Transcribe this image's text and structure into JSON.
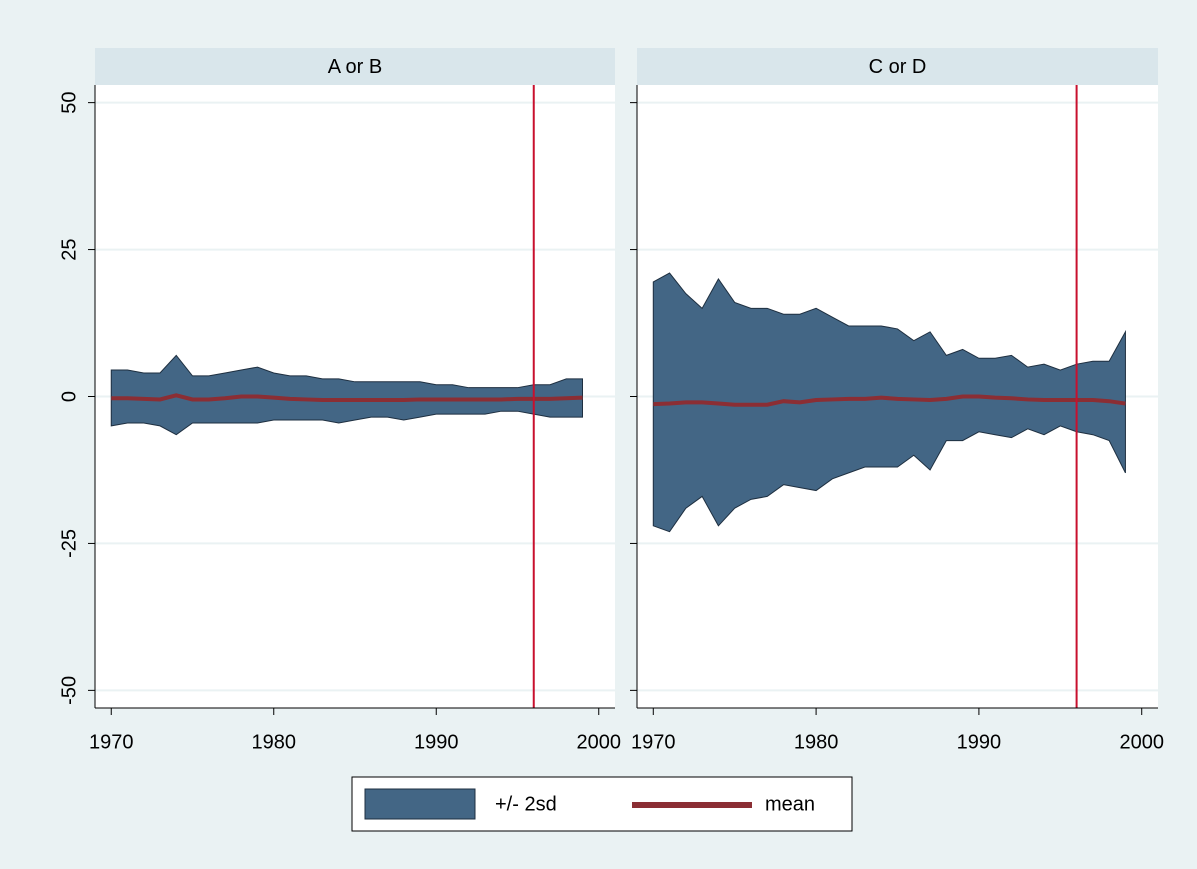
{
  "chart_data": [
    {
      "type": "band",
      "title": "A or B",
      "x": [
        1970,
        1971,
        1972,
        1973,
        1974,
        1975,
        1976,
        1977,
        1978,
        1979,
        1980,
        1981,
        1982,
        1983,
        1984,
        1985,
        1986,
        1987,
        1988,
        1989,
        1990,
        1991,
        1992,
        1993,
        1994,
        1995,
        1996,
        1997,
        1998,
        1999
      ],
      "series": [
        {
          "name": "+/- 2sd",
          "color": "#436685",
          "upper": [
            4.5,
            4.5,
            4,
            4,
            7,
            3.5,
            3.5,
            4,
            4.5,
            5,
            4,
            3.5,
            3.5,
            3,
            3,
            2.5,
            2.5,
            2.5,
            2.5,
            2.5,
            2,
            2,
            1.5,
            1.5,
            1.5,
            1.5,
            2,
            2,
            3,
            3
          ],
          "lower": [
            -5,
            -4.5,
            -4.5,
            -5,
            -6.5,
            -4.5,
            -4.5,
            -4.5,
            -4.5,
            -4.5,
            -4,
            -4,
            -4,
            -4,
            -4.5,
            -4,
            -3.5,
            -3.5,
            -4,
            -3.5,
            -3,
            -3,
            -3,
            -3,
            -2.5,
            -2.5,
            -3,
            -3.5,
            -3.5,
            -3.5
          ]
        },
        {
          "name": "mean",
          "color": "#8b2e34",
          "values": [
            -0.3,
            -0.3,
            -0.4,
            -0.5,
            0.2,
            -0.5,
            -0.5,
            -0.3,
            0,
            0,
            -0.2,
            -0.4,
            -0.5,
            -0.6,
            -0.6,
            -0.6,
            -0.6,
            -0.6,
            -0.6,
            -0.5,
            -0.5,
            -0.5,
            -0.5,
            -0.5,
            -0.5,
            -0.4,
            -0.4,
            -0.4,
            -0.3,
            -0.2
          ]
        }
      ],
      "vlines": [
        1996
      ],
      "vline_color": "#c8102e",
      "xlim": [
        1969,
        2001
      ],
      "xticks": [
        1970,
        1980,
        1990,
        2000
      ],
      "ylim": [
        -53,
        53
      ],
      "yticks": [
        -50,
        -25,
        0,
        25,
        50
      ],
      "grid": true
    },
    {
      "type": "band",
      "title": "C or D",
      "x": [
        1970,
        1971,
        1972,
        1973,
        1974,
        1975,
        1976,
        1977,
        1978,
        1979,
        1980,
        1981,
        1982,
        1983,
        1984,
        1985,
        1986,
        1987,
        1988,
        1989,
        1990,
        1991,
        1992,
        1993,
        1994,
        1995,
        1996,
        1997,
        1998,
        1999
      ],
      "series": [
        {
          "color": "#436685",
          "upper": [
            19.5,
            21,
            17.5,
            15,
            20,
            16,
            15,
            15,
            14,
            14,
            15,
            13.5,
            12,
            12,
            12,
            11.5,
            9.5,
            11,
            7,
            8,
            6.5,
            6.5,
            7,
            5,
            5.5,
            4.5,
            5.5,
            6,
            6,
            11
          ],
          "lower": [
            -22,
            -23,
            -19,
            -17,
            -22,
            -19,
            -17.5,
            -17,
            -15,
            -15.5,
            -16,
            -14,
            -13,
            -12,
            -12,
            -12,
            -10,
            -12.5,
            -7.5,
            -7.5,
            -6,
            -6.5,
            -7,
            -5.5,
            -6.5,
            -5,
            -6,
            -6.5,
            -7.5,
            -13
          ]
        },
        {
          "color": "#8b2e34",
          "values": [
            -1.3,
            -1.2,
            -1,
            -1,
            -1.2,
            -1.4,
            -1.4,
            -1.4,
            -0.8,
            -1,
            -0.6,
            -0.5,
            -0.4,
            -0.4,
            -0.2,
            -0.4,
            -0.5,
            -0.6,
            -0.4,
            0,
            0,
            -0.2,
            -0.3,
            -0.5,
            -0.6,
            -0.6,
            -0.6,
            -0.6,
            -0.8,
            -1.2
          ]
        }
      ],
      "vlines": [
        1996
      ],
      "vline_color": "#c8102e",
      "xlim": [
        1969,
        2001
      ],
      "xticks": [
        1970,
        1980,
        1990,
        2000
      ],
      "ylim": [
        -53,
        53
      ],
      "yticks": [
        -50,
        -25,
        0,
        25,
        50
      ],
      "grid": true
    }
  ]
}
